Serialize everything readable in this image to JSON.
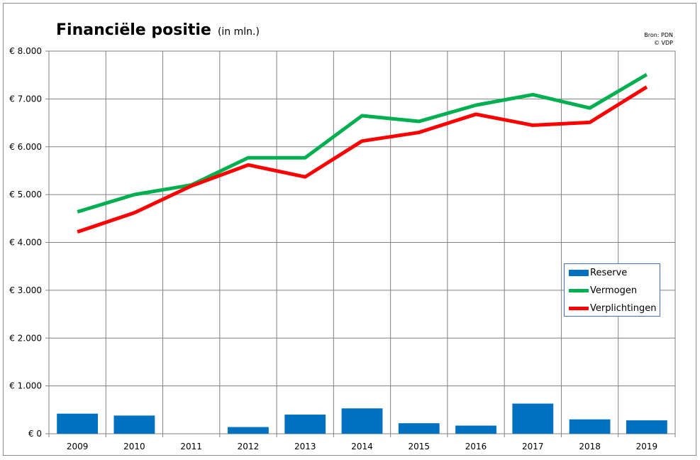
{
  "title": "Financiële positie",
  "subtitle": "(in mln.)",
  "source": [
    "Bron: PDN",
    "© VDP"
  ],
  "logo": "euro-sign-icon",
  "colors": {
    "reserve": "#0070c0",
    "vermogen": "#00b050",
    "verplichtingen": "#ff0000",
    "grid": "#808080",
    "plot_bg": "#ffffff",
    "legend_border": "#4472c4"
  },
  "chart_data": {
    "type": "bar+line",
    "title": "Financiële positie",
    "subtitle": "(in mln.)",
    "categories": [
      "2009",
      "2010",
      "2011",
      "2012",
      "2013",
      "2014",
      "2015",
      "2016",
      "2017",
      "2018",
      "2019"
    ],
    "ylim": [
      0,
      8000
    ],
    "yticks": [
      0,
      1000,
      2000,
      3000,
      4000,
      5000,
      6000,
      7000,
      8000
    ],
    "ytick_labels": [
      "€ 0",
      "€ 1.000",
      "€ 2.000",
      "€ 3.000",
      "€ 4.000",
      "€ 5.000",
      "€ 6.000",
      "€ 7.000",
      "€ 8.000"
    ],
    "grid": true,
    "legend_position": "right",
    "series": [
      {
        "name": "Reserve",
        "type": "bar",
        "values": [
          420,
          380,
          0,
          140,
          400,
          530,
          220,
          170,
          630,
          300,
          280
        ]
      },
      {
        "name": "Vermogen",
        "type": "line",
        "values": [
          4640,
          5000,
          5200,
          5770,
          5770,
          6650,
          6530,
          6870,
          7090,
          6810,
          7510
        ]
      },
      {
        "name": "Verplichtingen",
        "type": "line",
        "values": [
          4220,
          4620,
          5180,
          5620,
          5370,
          6120,
          6300,
          6680,
          6450,
          6510,
          7250
        ]
      }
    ]
  }
}
